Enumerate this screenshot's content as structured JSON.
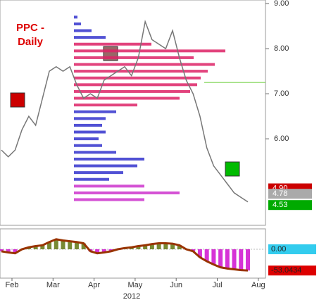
{
  "chart_data": {
    "type": "price_profile",
    "title": "PPC - Daily",
    "categories": [
      "Feb",
      "Mar",
      "Apr",
      "May",
      "Jun",
      "Jul",
      "Aug"
    ],
    "year_label": "2012",
    "ylim": [
      4.08,
      9.08
    ],
    "yticks": [
      {
        "value": 9,
        "label": "9.00"
      },
      {
        "value": 8,
        "label": "8.00"
      },
      {
        "value": 7,
        "label": "7.00"
      },
      {
        "value": 6,
        "label": "6.00"
      }
    ],
    "price": {
      "color": "#777777",
      "values": [
        5.75,
        5.6,
        5.75,
        6.2,
        6.5,
        6.3,
        6.9,
        7.5,
        7.6,
        7.5,
        7.6,
        7.2,
        6.9,
        7.0,
        6.9,
        7.3,
        7.4,
        7.5,
        7.6,
        7.4,
        7.8,
        8.6,
        8.2,
        8.1,
        8.0,
        8.4,
        7.8,
        7.3,
        7.0,
        6.5,
        5.8,
        5.4,
        5.2,
        5.0,
        4.8,
        4.7,
        4.6
      ]
    },
    "reference_line": {
      "value": 7.25,
      "color": "#66cc33"
    },
    "profile": {
      "xlim": [
        0,
        272
      ],
      "levels": [
        8.7,
        8.55,
        8.4,
        8.25,
        8.1,
        7.95,
        7.8,
        7.65,
        7.5,
        7.35,
        7.2,
        7.05,
        6.9,
        6.75,
        6.6,
        6.45,
        6.3,
        6.15,
        6.0,
        5.85,
        5.7,
        5.55,
        5.4,
        5.25,
        5.1,
        4.95,
        4.8,
        4.65
      ],
      "values": [
        5,
        10,
        25,
        45,
        110,
        215,
        170,
        200,
        190,
        180,
        175,
        165,
        150,
        90,
        60,
        45,
        40,
        45,
        35,
        40,
        60,
        100,
        90,
        70,
        50,
        100,
        150,
        100
      ],
      "colors": [
        "#3333cc",
        "#3333cc",
        "#3333cc",
        "#3333cc",
        "#dd2266",
        "#dd2266",
        "#dd2266",
        "#dd2266",
        "#dd2266",
        "#dd2266",
        "#dd2266",
        "#dd2266",
        "#dd2266",
        "#dd2266",
        "#3333cc",
        "#3333cc",
        "#3333cc",
        "#3333cc",
        "#3333cc",
        "#3333cc",
        "#3333cc",
        "#3333cc",
        "#3333cc",
        "#3333cc",
        "#3333cc",
        "#cc33cc",
        "#cc33cc",
        "#cc33cc"
      ]
    },
    "last_labels": [
      {
        "value": 4.9,
        "label": "4.90",
        "color": "#cc0000"
      },
      {
        "value": 4.78,
        "label": "4.78",
        "color": "#aaaaaa"
      },
      {
        "value": 4.53,
        "label": "4.53",
        "color": "#00aa00"
      }
    ],
    "indicator": {
      "ylim": [
        -72,
        51
      ],
      "yticks": [
        {
          "value": 0,
          "label": "0.00",
          "color": "#33ccee"
        },
        {
          "value": -53.0434,
          "label": "-53.0434",
          "color": "#dd0000"
        }
      ],
      "line_color": "#993300",
      "positive_color": "#556b00",
      "negative_color": "#cc00cc",
      "values": [
        -5,
        -8,
        -10,
        0,
        5,
        8,
        10,
        18,
        25,
        22,
        20,
        18,
        15,
        -5,
        -10,
        -8,
        -5,
        0,
        3,
        5,
        8,
        10,
        13,
        15,
        15,
        14,
        10,
        0,
        -5,
        -20,
        -30,
        -38,
        -45,
        -48,
        -50,
        -52,
        -53
      ]
    }
  }
}
